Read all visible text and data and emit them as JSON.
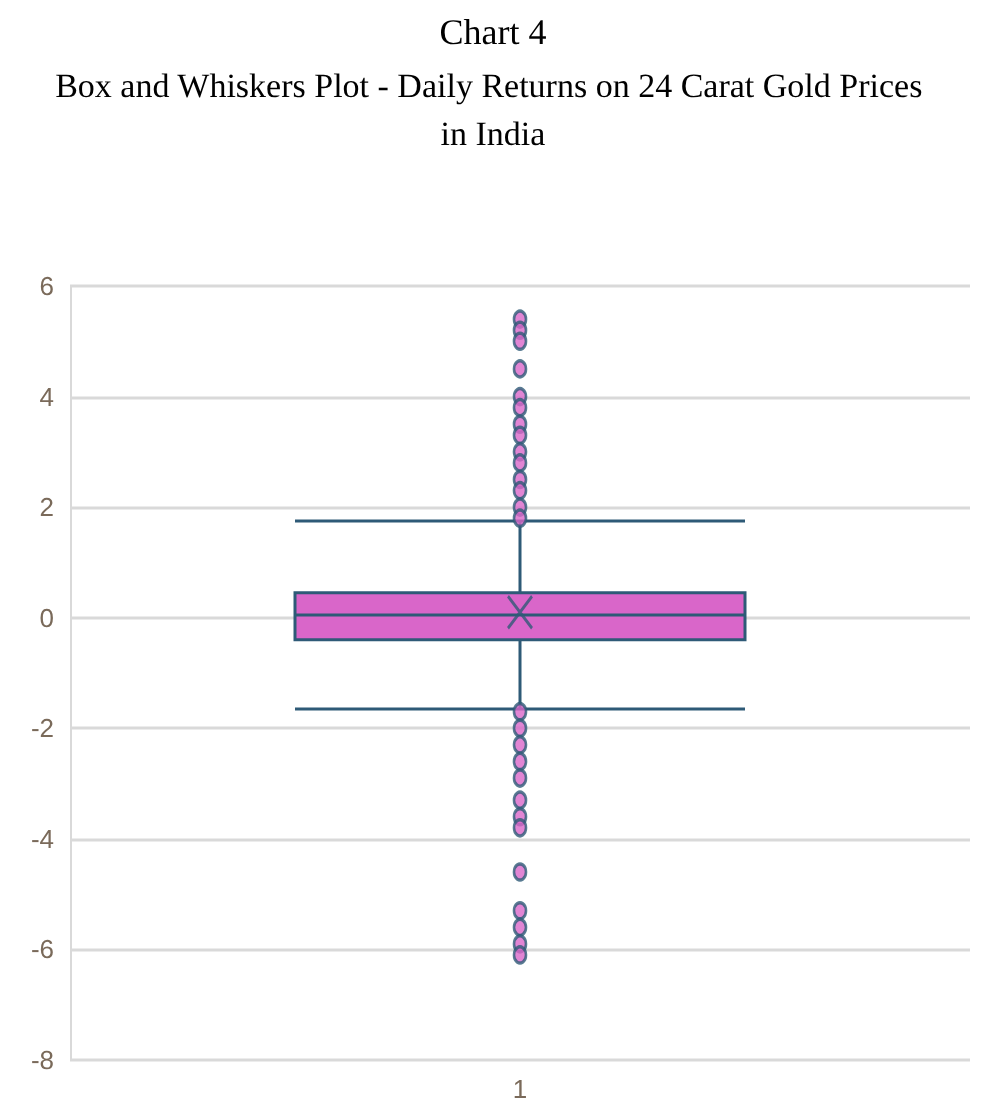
{
  "chart_data": {
    "type": "box",
    "title": "Chart 4",
    "subtitle": "Box and Whiskers Plot - Daily Returns on 24 Carat Gold Prices in India",
    "categories": [
      "1"
    ],
    "series": [
      {
        "color": "#d966c9",
        "boxes": [
          {
            "low": -1.65,
            "q1": -0.4,
            "median": 0.05,
            "q3": 0.45,
            "high": 1.75,
            "mean": 0.1,
            "outliers": [
              5.4,
              5.2,
              5.0,
              4.5,
              4.0,
              3.8,
              3.5,
              3.3,
              3.0,
              2.8,
              2.5,
              2.3,
              2.0,
              1.8,
              -1.7,
              -2.0,
              -2.3,
              -2.6,
              -2.9,
              -3.3,
              -3.6,
              -3.8,
              -4.6,
              -5.3,
              -5.6,
              -5.9,
              -6.1
            ]
          }
        ]
      }
    ],
    "ylim": [
      -8,
      6
    ],
    "yticks": [
      -8,
      -6,
      -4,
      -2,
      0,
      2,
      4,
      6
    ],
    "grid": "y"
  }
}
